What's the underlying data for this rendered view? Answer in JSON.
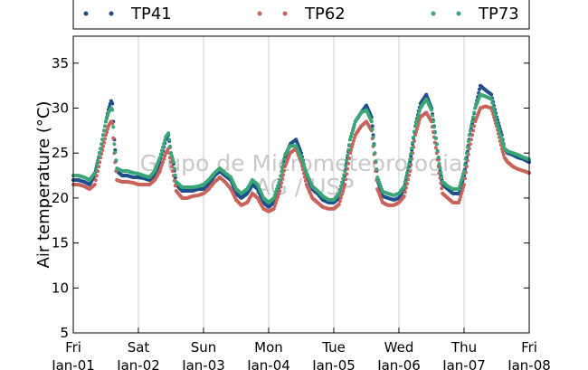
{
  "chart_data": {
    "type": "scatter",
    "ylabel": "Air temperature (°C)",
    "ylim": [
      5,
      38
    ],
    "yticks": [
      "5",
      "10",
      "15",
      "20",
      "25",
      "30",
      "35"
    ],
    "x_range_days": [
      0,
      7
    ],
    "xticks": [
      {
        "day": "Fri",
        "date": "Jan-01"
      },
      {
        "day": "Sat",
        "date": "Jan-02"
      },
      {
        "day": "Sun",
        "date": "Jan-03"
      },
      {
        "day": "Mon",
        "date": "Jan-04"
      },
      {
        "day": "Tue",
        "date": "Jan-05"
      },
      {
        "day": "Wed",
        "date": "Jan-06"
      },
      {
        "day": "Thu",
        "date": "Jan-07"
      },
      {
        "day": "Fri",
        "date": "Jan-08"
      }
    ],
    "grid": "vertical",
    "legend_position": "top (above plot)",
    "watermark": [
      "Grupo de Micrometeorologia",
      "IAG / USP"
    ],
    "series": [
      {
        "name": "TP41",
        "color": "#1f4e8c",
        "x": [
          0.0,
          0.08,
          0.17,
          0.25,
          0.33,
          0.42,
          0.5,
          0.54,
          0.58,
          0.6,
          0.63,
          0.67,
          0.75,
          0.83,
          0.92,
          1.0,
          1.08,
          1.17,
          1.25,
          1.33,
          1.42,
          1.46,
          1.5,
          1.54,
          1.58,
          1.67,
          1.75,
          1.83,
          1.92,
          2.0,
          2.08,
          2.17,
          2.25,
          2.33,
          2.42,
          2.5,
          2.58,
          2.67,
          2.75,
          2.83,
          2.92,
          3.0,
          3.08,
          3.17,
          3.25,
          3.33,
          3.42,
          3.5,
          3.58,
          3.67,
          3.75,
          3.83,
          3.92,
          4.0,
          4.08,
          4.17,
          4.25,
          4.33,
          4.42,
          4.5,
          4.58,
          4.63,
          4.67,
          4.75,
          4.83,
          4.92,
          5.0,
          5.08,
          5.17,
          5.25,
          5.33,
          5.42,
          5.5,
          5.58,
          5.62,
          5.67,
          5.75,
          5.83,
          5.92,
          6.0,
          6.08,
          6.17,
          6.25,
          6.33,
          6.42,
          6.5,
          6.58,
          6.62,
          6.67,
          6.75,
          6.83,
          6.92,
          7.0
        ],
        "y": [
          22.0,
          22.0,
          21.8,
          21.5,
          22.5,
          25.5,
          28.5,
          29.8,
          30.8,
          30.5,
          26.5,
          23.0,
          22.5,
          22.5,
          22.3,
          22.3,
          22.2,
          22.0,
          22.5,
          24.0,
          26.5,
          27.0,
          25.0,
          23.8,
          21.5,
          20.8,
          20.8,
          20.8,
          21.0,
          21.0,
          21.5,
          22.5,
          23.0,
          22.5,
          22.0,
          20.5,
          20.0,
          20.5,
          21.5,
          21.0,
          19.5,
          19.0,
          19.5,
          21.5,
          24.5,
          26.0,
          26.5,
          25.0,
          22.5,
          21.0,
          20.5,
          19.8,
          19.5,
          19.5,
          20.0,
          22.5,
          26.5,
          28.5,
          29.5,
          30.3,
          29.0,
          25.0,
          22.0,
          20.2,
          20.0,
          19.8,
          20.0,
          21.0,
          24.0,
          28.0,
          30.5,
          31.5,
          30.0,
          26.0,
          23.5,
          21.5,
          21.0,
          20.5,
          20.5,
          22.5,
          26.5,
          30.0,
          32.5,
          32.0,
          31.5,
          29.0,
          27.0,
          25.5,
          25.0,
          24.8,
          24.5,
          24.3,
          24.0
        ]
      },
      {
        "name": "TP62",
        "color": "#c9625a",
        "x": [
          0.0,
          0.08,
          0.17,
          0.25,
          0.33,
          0.42,
          0.5,
          0.54,
          0.58,
          0.6,
          0.63,
          0.67,
          0.75,
          0.83,
          0.92,
          1.0,
          1.08,
          1.17,
          1.25,
          1.33,
          1.42,
          1.46,
          1.5,
          1.54,
          1.58,
          1.67,
          1.75,
          1.83,
          1.92,
          2.0,
          2.08,
          2.17,
          2.25,
          2.33,
          2.42,
          2.5,
          2.58,
          2.67,
          2.75,
          2.83,
          2.92,
          3.0,
          3.08,
          3.17,
          3.25,
          3.33,
          3.42,
          3.5,
          3.58,
          3.67,
          3.75,
          3.83,
          3.92,
          4.0,
          4.08,
          4.17,
          4.25,
          4.33,
          4.42,
          4.5,
          4.58,
          4.63,
          4.67,
          4.75,
          4.83,
          4.92,
          5.0,
          5.08,
          5.17,
          5.25,
          5.33,
          5.42,
          5.5,
          5.58,
          5.62,
          5.67,
          5.75,
          5.83,
          5.92,
          6.0,
          6.08,
          6.17,
          6.25,
          6.33,
          6.42,
          6.5,
          6.58,
          6.62,
          6.67,
          6.75,
          6.83,
          6.92,
          7.0
        ],
        "y": [
          21.5,
          21.5,
          21.3,
          21.0,
          21.5,
          24.5,
          27.0,
          28.0,
          28.5,
          28.3,
          25.0,
          22.0,
          21.8,
          21.8,
          21.7,
          21.5,
          21.5,
          21.5,
          22.0,
          23.0,
          25.0,
          25.5,
          24.0,
          22.5,
          20.8,
          20.0,
          20.0,
          20.2,
          20.3,
          20.5,
          21.0,
          21.8,
          22.3,
          21.8,
          21.0,
          19.8,
          19.2,
          19.5,
          20.5,
          20.0,
          18.8,
          18.5,
          18.8,
          20.8,
          23.5,
          25.0,
          25.5,
          24.0,
          21.5,
          20.0,
          19.5,
          19.0,
          18.8,
          18.8,
          19.3,
          21.5,
          25.0,
          27.0,
          28.0,
          28.5,
          27.5,
          24.0,
          21.0,
          19.5,
          19.2,
          19.2,
          19.5,
          20.2,
          23.0,
          27.0,
          29.0,
          29.5,
          28.5,
          25.0,
          22.8,
          20.5,
          20.0,
          19.5,
          19.5,
          21.5,
          25.5,
          28.5,
          30.0,
          30.2,
          30.0,
          28.0,
          25.5,
          24.5,
          24.0,
          23.5,
          23.2,
          23.0,
          22.8
        ]
      },
      {
        "name": "TP73",
        "color": "#3aa676",
        "x": [
          0.0,
          0.08,
          0.17,
          0.25,
          0.33,
          0.42,
          0.5,
          0.54,
          0.58,
          0.6,
          0.63,
          0.67,
          0.75,
          0.83,
          0.92,
          1.0,
          1.08,
          1.17,
          1.25,
          1.33,
          1.42,
          1.46,
          1.5,
          1.54,
          1.58,
          1.67,
          1.75,
          1.83,
          1.92,
          2.0,
          2.08,
          2.17,
          2.25,
          2.33,
          2.42,
          2.5,
          2.58,
          2.67,
          2.75,
          2.83,
          2.92,
          3.0,
          3.08,
          3.17,
          3.25,
          3.33,
          3.42,
          3.5,
          3.58,
          3.67,
          3.75,
          3.83,
          3.92,
          4.0,
          4.08,
          4.17,
          4.25,
          4.33,
          4.42,
          4.5,
          4.58,
          4.63,
          4.67,
          4.75,
          4.83,
          4.92,
          5.0,
          5.08,
          5.17,
          5.25,
          5.33,
          5.42,
          5.5,
          5.58,
          5.62,
          5.67,
          5.75,
          5.83,
          5.92,
          6.0,
          6.08,
          6.17,
          6.25,
          6.33,
          6.42,
          6.5,
          6.58,
          6.62,
          6.67,
          6.75,
          6.83,
          6.92,
          7.0
        ],
        "y": [
          22.5,
          22.5,
          22.3,
          22.0,
          22.8,
          25.5,
          28.5,
          29.5,
          30.0,
          29.8,
          26.0,
          23.3,
          23.0,
          23.0,
          22.8,
          22.7,
          22.5,
          22.3,
          23.0,
          24.5,
          26.8,
          27.2,
          25.0,
          24.0,
          21.8,
          21.2,
          21.2,
          21.2,
          21.3,
          21.5,
          22.0,
          22.8,
          23.3,
          22.8,
          22.3,
          21.0,
          20.5,
          21.0,
          22.0,
          21.5,
          20.0,
          19.5,
          20.0,
          22.0,
          24.8,
          25.8,
          25.8,
          24.5,
          22.8,
          21.3,
          20.8,
          20.2,
          19.8,
          19.8,
          20.5,
          23.0,
          26.5,
          28.5,
          29.5,
          29.8,
          28.5,
          25.0,
          22.3,
          20.7,
          20.5,
          20.3,
          20.5,
          21.3,
          24.3,
          28.0,
          30.0,
          31.0,
          29.8,
          26.0,
          23.8,
          21.8,
          21.3,
          21.0,
          21.0,
          23.0,
          27.0,
          30.0,
          31.5,
          31.3,
          31.0,
          28.5,
          26.5,
          25.5,
          25.2,
          25.0,
          24.8,
          24.5,
          24.3
        ]
      }
    ]
  }
}
